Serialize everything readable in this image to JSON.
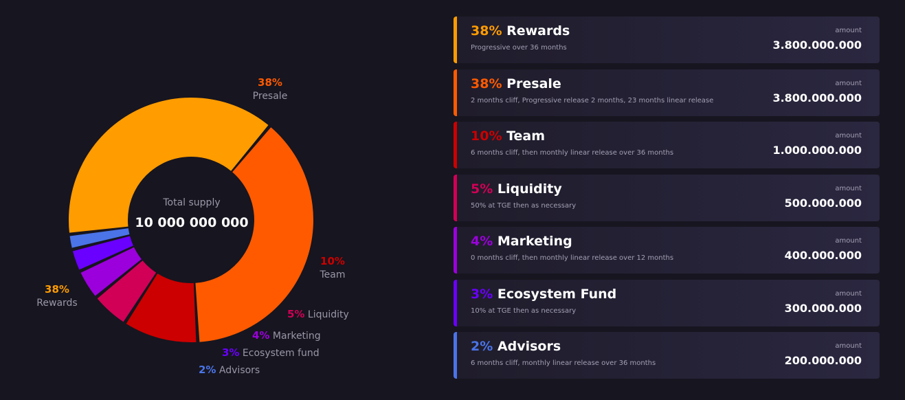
{
  "chart_data": {
    "type": "pie",
    "center": {
      "label": "Total supply",
      "value": "10 000 000 000"
    },
    "slices": [
      {
        "pct_label": "38%",
        "name": "Presale",
        "value": 38,
        "color": "#ff5a00"
      },
      {
        "pct_label": "10%",
        "name": "Team",
        "value": 10,
        "color": "#cc0000"
      },
      {
        "pct_label": "5%",
        "name": "Liquidity",
        "value": 5,
        "color": "#d10056"
      },
      {
        "pct_label": "4%",
        "name": "Marketing",
        "value": 4,
        "color": "#9b00dc"
      },
      {
        "pct_label": "3%",
        "name": "Ecosystem fund",
        "value": 3,
        "color": "#6a00ff"
      },
      {
        "pct_label": "2%",
        "name": "Advisors",
        "value": 2,
        "color": "#4a74e8"
      },
      {
        "pct_label": "38%",
        "name": "Rewards",
        "value": 38,
        "color": "#ff9c00"
      }
    ]
  },
  "allocations": [
    {
      "pct": "38%",
      "name": "Rewards",
      "desc": "Progressive over 36 months",
      "amount_label": "amount",
      "amount": "3.800.000.000",
      "color": "#ff9c00"
    },
    {
      "pct": "38%",
      "name": "Presale",
      "desc": "2 months cliff, Progressive release 2 months, 23 months linear release",
      "amount_label": "amount",
      "amount": "3.800.000.000",
      "color": "#ff5a00"
    },
    {
      "pct": "10%",
      "name": "Team",
      "desc": "6 months cliff, then monthly linear release over 36 months",
      "amount_label": "amount",
      "amount": "1.000.000.000",
      "color": "#cc0000"
    },
    {
      "pct": "5%",
      "name": "Liquidity",
      "desc": "50% at TGE then as necessary",
      "amount_label": "amount",
      "amount": "500.000.000",
      "color": "#d10056"
    },
    {
      "pct": "4%",
      "name": "Marketing",
      "desc": "0 months cliff, then monthly linear release over 12 months",
      "amount_label": "amount",
      "amount": "400.000.000",
      "color": "#9b00dc"
    },
    {
      "pct": "3%",
      "name": "Ecosystem Fund",
      "desc": "10% at TGE then as necessary",
      "amount_label": "amount",
      "amount": "300.000.000",
      "color": "#6a00ff"
    },
    {
      "pct": "2%",
      "name": "Advisors",
      "desc": "6 months cliff, monthly linear release over 36 months",
      "amount_label": "amount",
      "amount": "200.000.000",
      "color": "#4a74e8"
    }
  ]
}
